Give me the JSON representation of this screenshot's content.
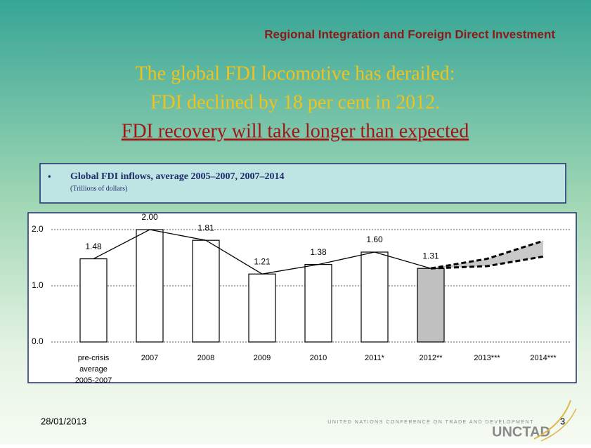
{
  "header": {
    "title": "Regional Integration and Foreign Direct Investment"
  },
  "headline": {
    "lines": [
      "The global FDI locomotive has derailed:",
      "FDI declined by 18 per cent in 2012."
    ],
    "emphasis": "FDI recovery will take longer than expected"
  },
  "caption": {
    "bullet": "•",
    "title": "Global FDI inflows, average 2005–2007, 2007–2014",
    "unit": "(Trillions of dollars)"
  },
  "chart_data": {
    "type": "bar",
    "categories": [
      "pre-crisis average 2005-2007",
      "2007",
      "2008",
      "2009",
      "2010",
      "2011*",
      "2012**",
      "2013***",
      "2014***"
    ],
    "values": [
      1.48,
      2.0,
      1.81,
      1.21,
      1.38,
      1.6,
      1.31,
      null,
      null
    ],
    "value_labels": [
      "1.48",
      "2.00",
      "1.81",
      "1.21",
      "1.38",
      "1.60",
      "1.31",
      null,
      null
    ],
    "bar_colors": [
      "#ffffff",
      "#ffffff",
      "#ffffff",
      "#ffffff",
      "#ffffff",
      "#ffffff",
      "#c0c0c0",
      null,
      null
    ],
    "line_color": "#000000",
    "series": [
      {
        "color": "#000000",
        "values": [
          null,
          null,
          null,
          null,
          null,
          null,
          1.31,
          1.48,
          1.8
        ]
      },
      {
        "color": "#000000",
        "values": [
          null,
          null,
          null,
          null,
          null,
          null,
          1.31,
          1.35,
          1.52
        ]
      }
    ],
    "band_color": "#c8c8c8",
    "ylim": [
      0,
      2.2
    ],
    "yticks": [
      {
        "value": 0,
        "label": "0.0"
      },
      {
        "value": 1,
        "label": "1.0"
      },
      {
        "value": 2,
        "label": "2.0"
      }
    ],
    "grid": true
  },
  "footer": {
    "date": "28/01/2013",
    "org": "UNITED NATIONS CONFERENCE ON TRADE AND DEVELOPMENT",
    "logo": "UNCTAD",
    "page": "3"
  }
}
